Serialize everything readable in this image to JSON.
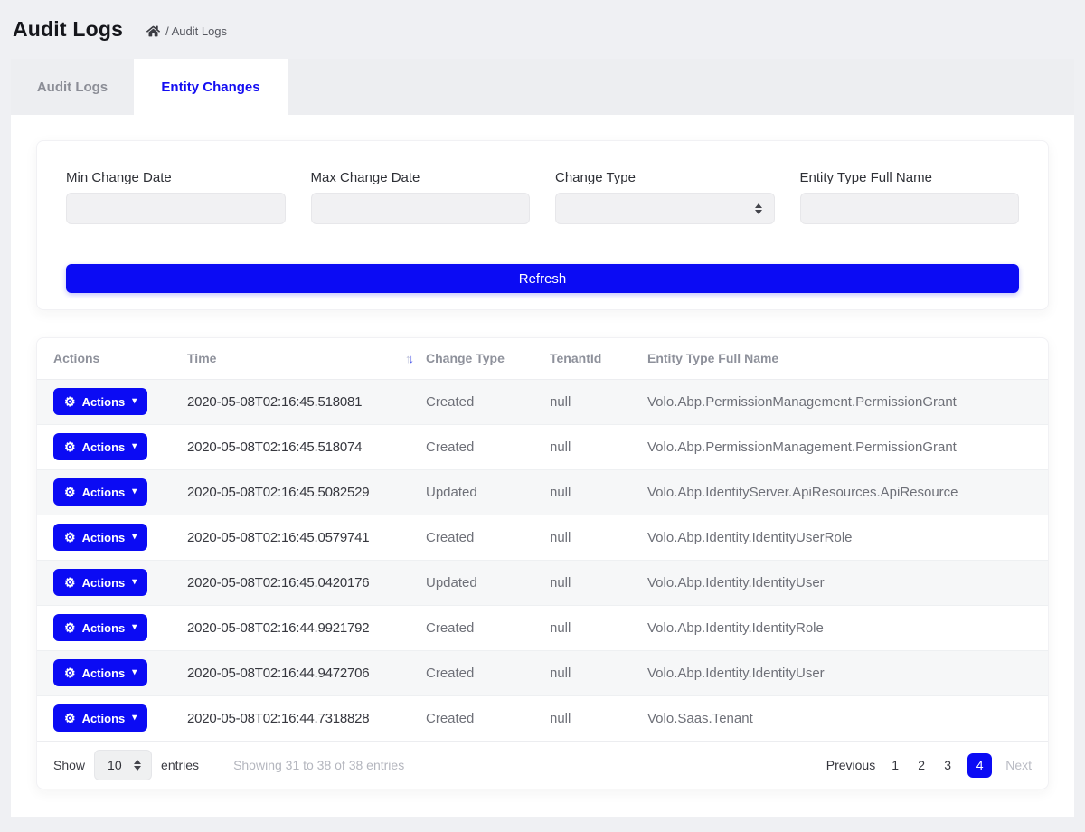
{
  "page": {
    "title": "Audit Logs",
    "breadcrumb_current": "/ Audit Logs"
  },
  "tabs": [
    {
      "label": "Audit Logs"
    },
    {
      "label": "Entity Changes"
    }
  ],
  "filters": {
    "min_change_date_label": "Min Change Date",
    "max_change_date_label": "Max Change Date",
    "change_type_label": "Change Type",
    "entity_type_label": "Entity Type Full Name",
    "min_change_date_value": "",
    "max_change_date_value": "",
    "change_type_value": "",
    "entity_type_value": "",
    "refresh_label": "Refresh"
  },
  "table": {
    "columns": [
      "Actions",
      "Time",
      "Change Type",
      "TenantId",
      "Entity Type Full Name"
    ],
    "action_label": "Actions",
    "rows": [
      {
        "time": "2020-05-08T02:16:45.518081",
        "change_type": "Created",
        "tenant_id": "null",
        "entity_type": "Volo.Abp.PermissionManagement.PermissionGrant"
      },
      {
        "time": "2020-05-08T02:16:45.518074",
        "change_type": "Created",
        "tenant_id": "null",
        "entity_type": "Volo.Abp.PermissionManagement.PermissionGrant"
      },
      {
        "time": "2020-05-08T02:16:45.5082529",
        "change_type": "Updated",
        "tenant_id": "null",
        "entity_type": "Volo.Abp.IdentityServer.ApiResources.ApiResource"
      },
      {
        "time": "2020-05-08T02:16:45.0579741",
        "change_type": "Created",
        "tenant_id": "null",
        "entity_type": "Volo.Abp.Identity.IdentityUserRole"
      },
      {
        "time": "2020-05-08T02:16:45.0420176",
        "change_type": "Updated",
        "tenant_id": "null",
        "entity_type": "Volo.Abp.Identity.IdentityUser"
      },
      {
        "time": "2020-05-08T02:16:44.9921792",
        "change_type": "Created",
        "tenant_id": "null",
        "entity_type": "Volo.Abp.Identity.IdentityRole"
      },
      {
        "time": "2020-05-08T02:16:44.9472706",
        "change_type": "Created",
        "tenant_id": "null",
        "entity_type": "Volo.Abp.Identity.IdentityUser"
      },
      {
        "time": "2020-05-08T02:16:44.7318828",
        "change_type": "Created",
        "tenant_id": "null",
        "entity_type": "Volo.Saas.Tenant"
      }
    ]
  },
  "footer": {
    "show_label": "Show",
    "page_size": "10",
    "entries_label": "entries",
    "info": "Showing 31 to 38 of 38 entries",
    "previous_label": "Previous",
    "pages": [
      "1",
      "2",
      "3",
      "4"
    ],
    "active_page": "4",
    "next_label": "Next"
  },
  "colors": {
    "primary": "#0b0bf4",
    "page_background": "#eff0f3",
    "striped_row": "#f6f7f8"
  }
}
